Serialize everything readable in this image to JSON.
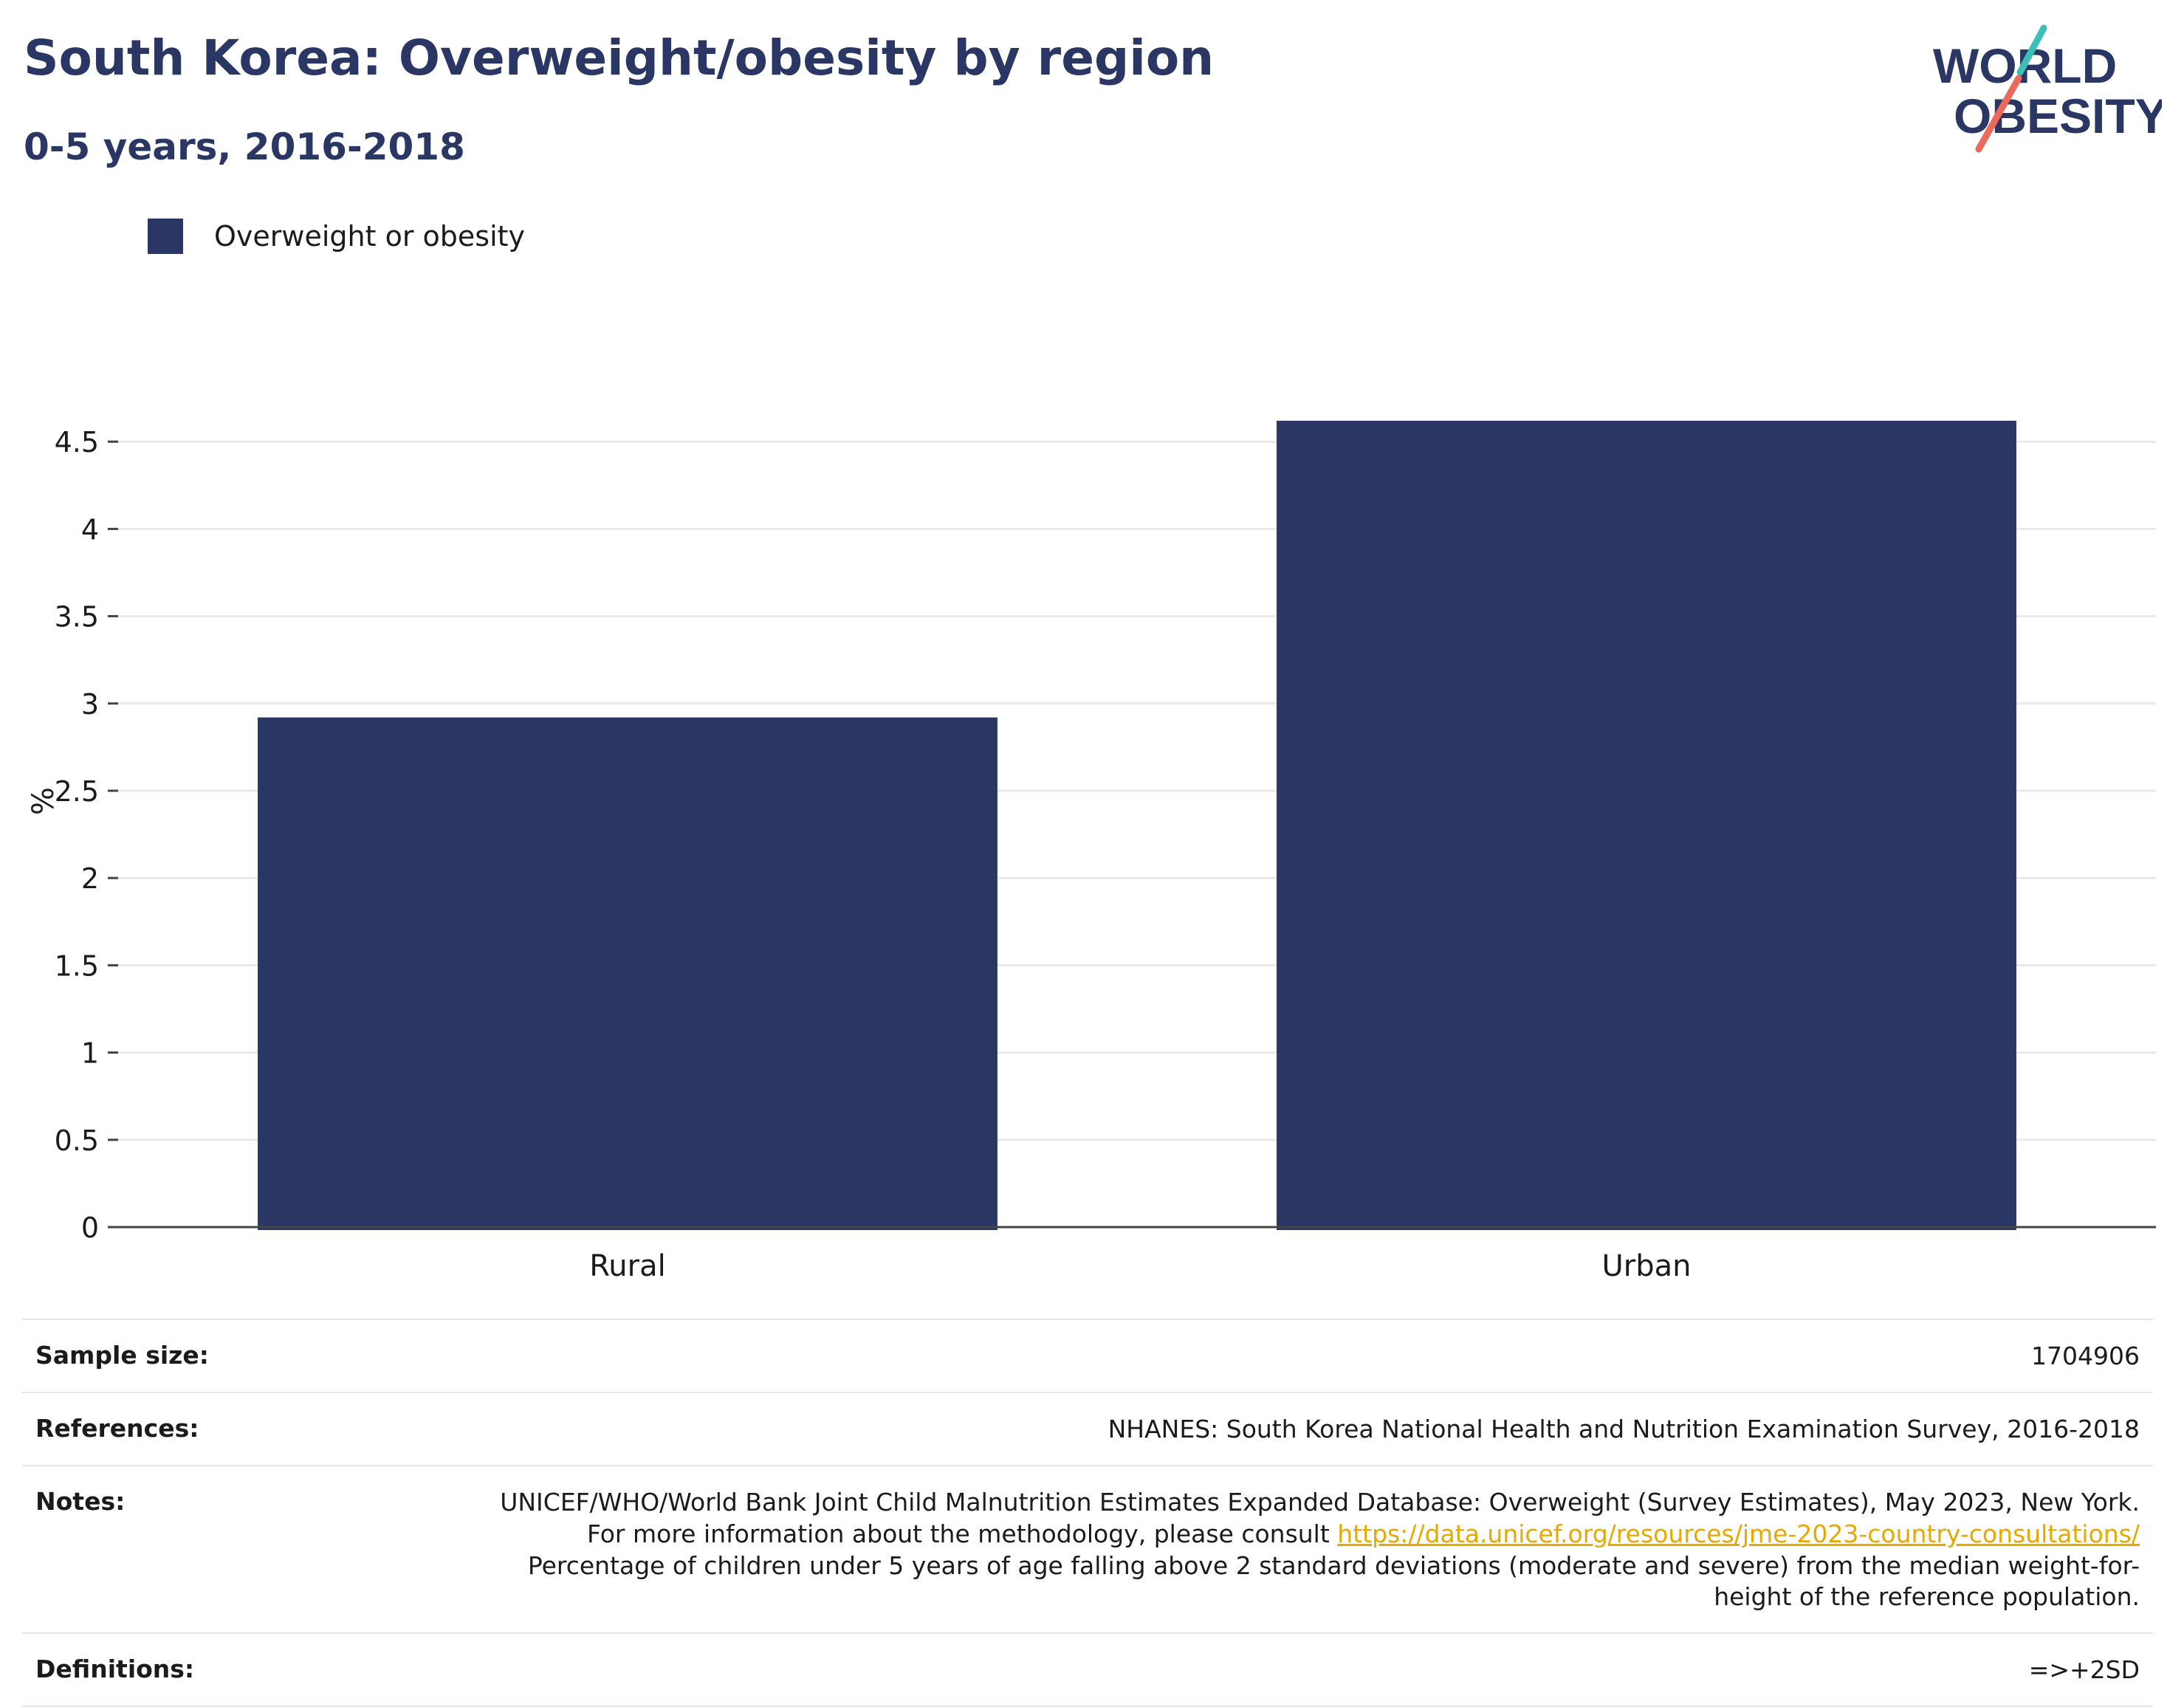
{
  "header": {
    "title": "South Korea: Overweight/obesity by region",
    "subtitle": "0-5 years, 2016-2018",
    "logo_line1": "WORLD",
    "logo_line2": "OBESITY"
  },
  "legend": {
    "label": "Overweight or obesity",
    "color": "#2a3764"
  },
  "chart_data": {
    "type": "bar",
    "categories": [
      "Rural",
      "Urban"
    ],
    "series": [
      {
        "name": "Overweight or obesity",
        "values": [
          2.92,
          4.62
        ]
      }
    ],
    "ylabel": "%",
    "ylim": [
      0,
      5
    ],
    "yticks": [
      "0",
      "0.5",
      "1",
      "1.5",
      "2",
      "2.5",
      "3",
      "3.5",
      "4",
      "4.5"
    ],
    "grid": true,
    "legend_position": "top-left",
    "bar_color": "#2a3764"
  },
  "info": {
    "sample_label": "Sample size:",
    "sample_value": "1704906",
    "references_label": "References:",
    "references_value": "NHANES: South Korea National Health and Nutrition Examination Survey, 2016-2018",
    "notes_label": "Notes:",
    "notes_text1": "UNICEF/WHO/World Bank Joint Child Malnutrition Estimates Expanded Database: Overweight (Survey Estimates), May 2023, New York. For more information about the methodology, please consult",
    "notes_link": "https://data.unicef.org/resources/jme-2023-country-consultations/",
    "notes_text2": "Percentage of children under 5 years of age falling above 2 standard deviations (moderate and severe) from the median weight-for-height of the reference population.",
    "definitions_label": "Definitions:",
    "definitions_value": "=>+2SD"
  }
}
